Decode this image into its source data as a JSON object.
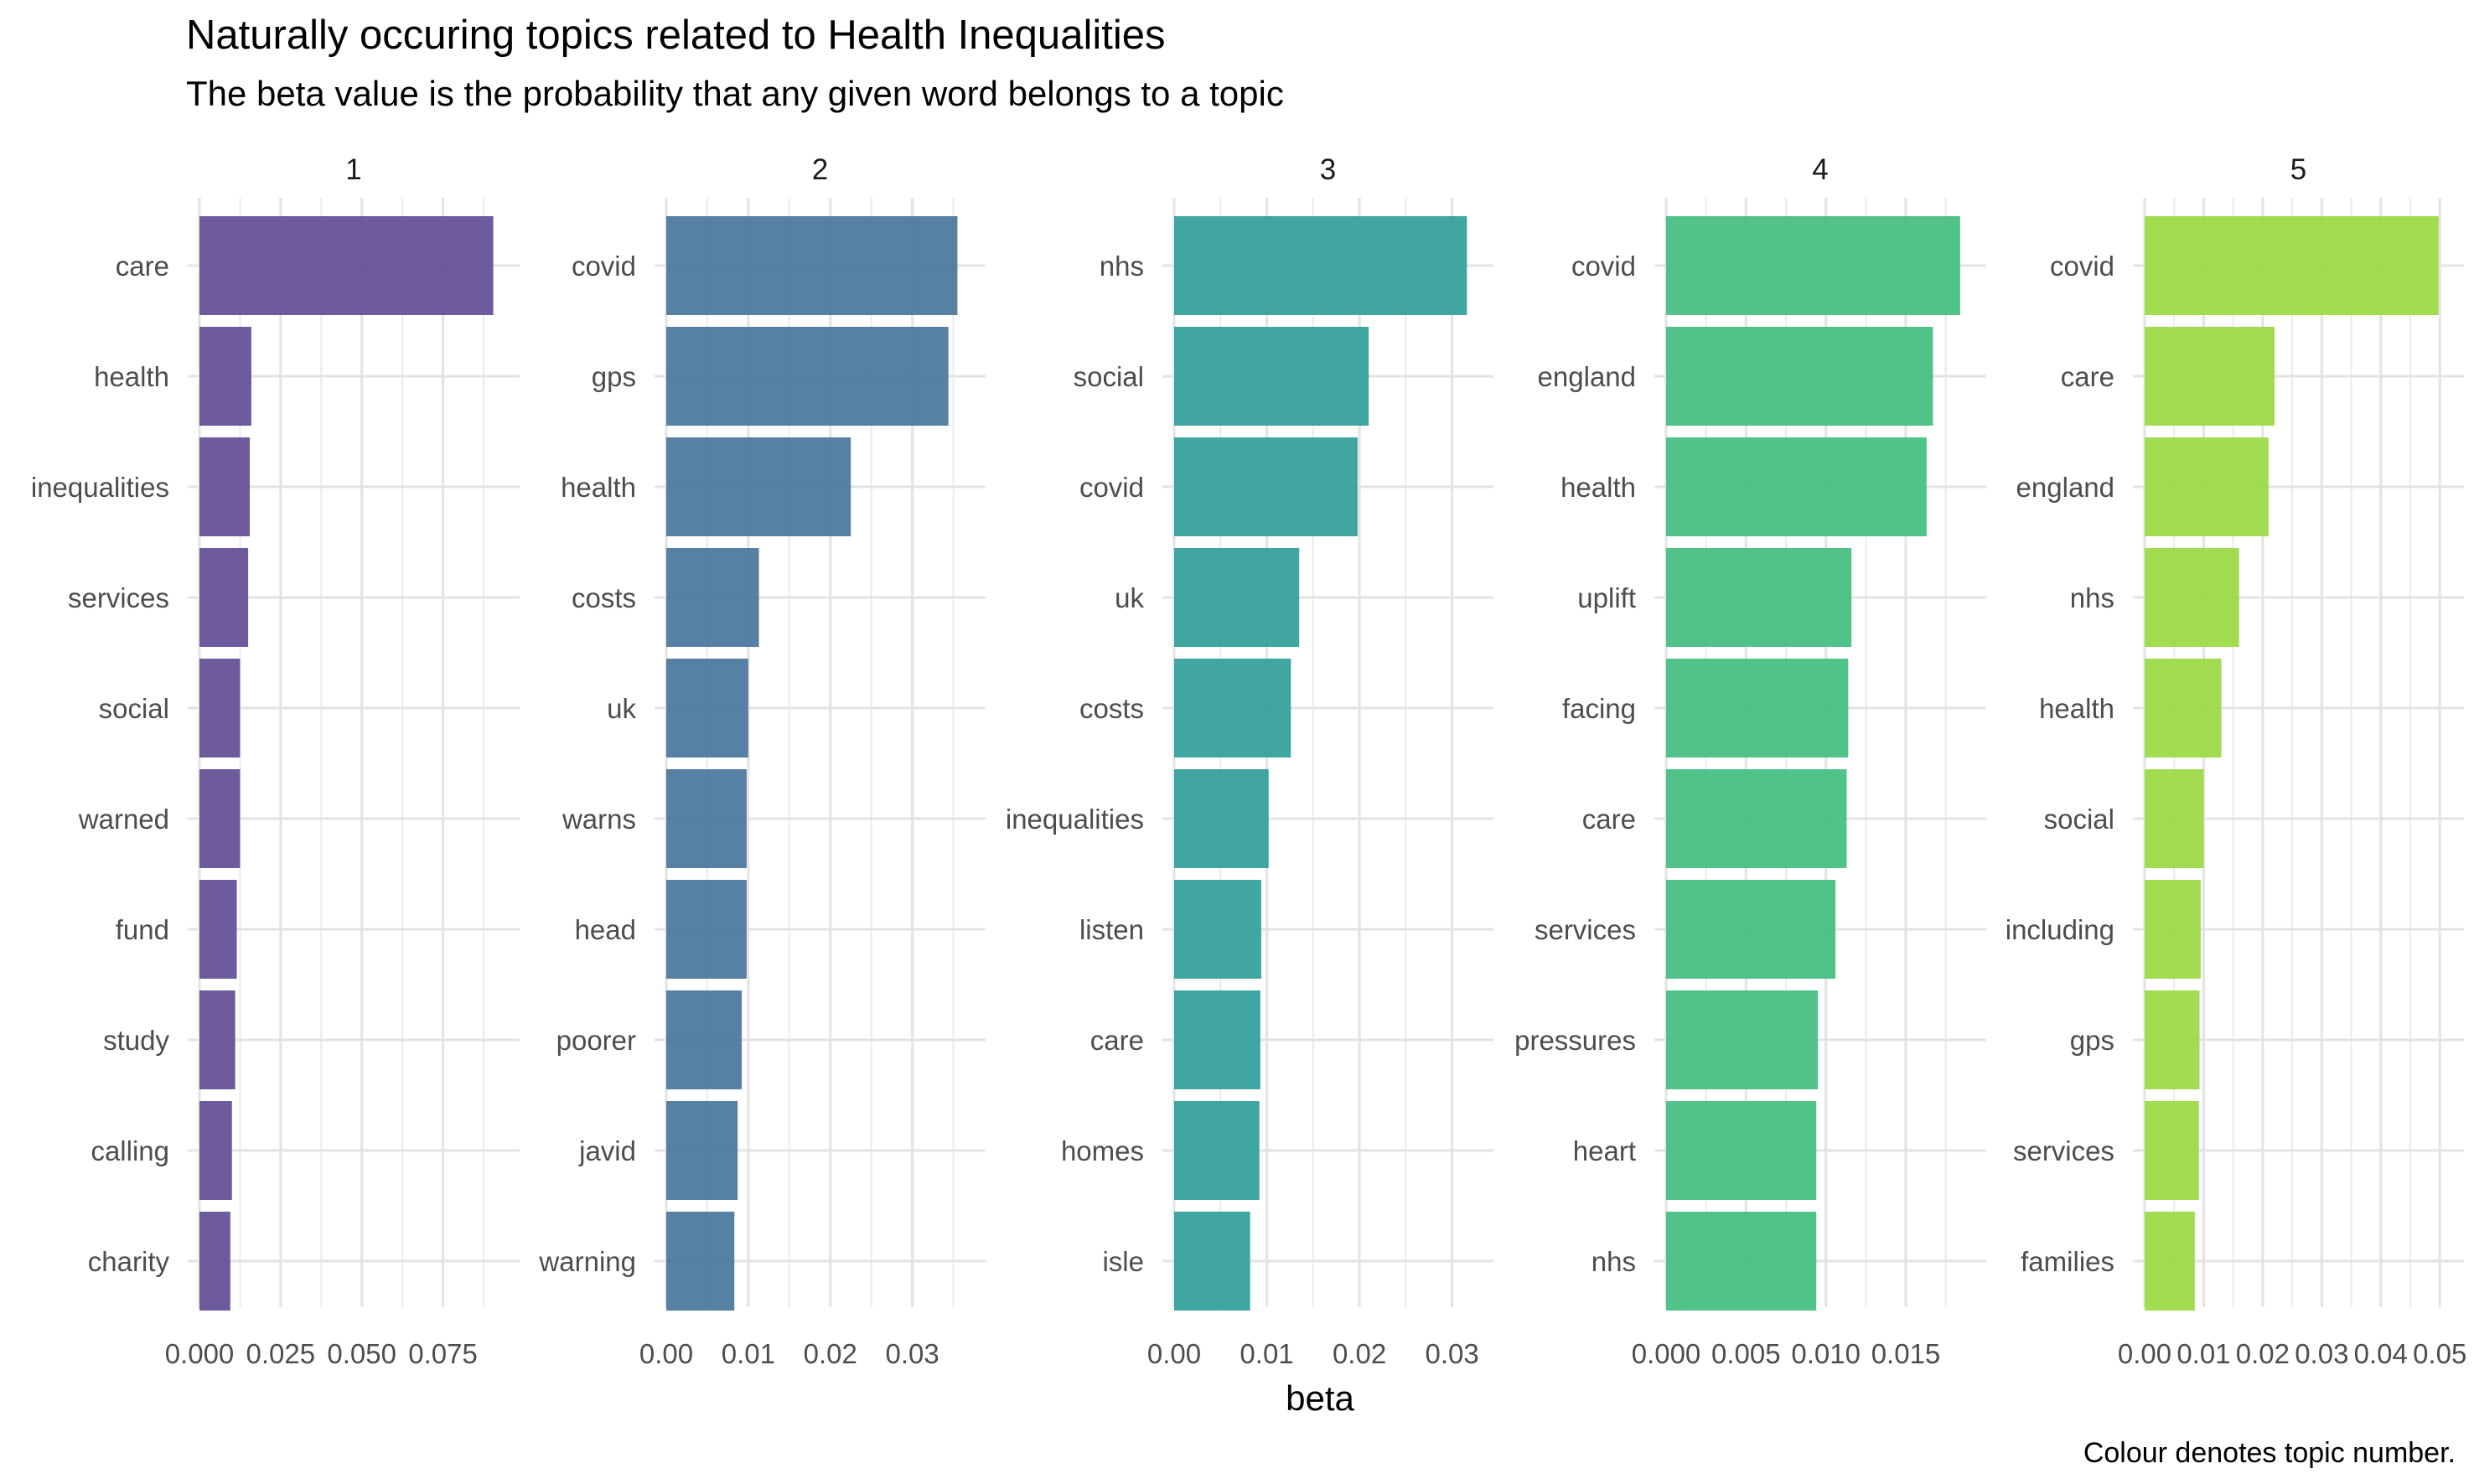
{
  "title": "Naturally occuring topics related to Health Inequalities",
  "subtitle": "The beta value is the probability that any given word belongs to a topic",
  "caption": "Colour denotes topic number.",
  "chart_data": {
    "type": "bar",
    "orientation": "horizontal",
    "layout": "facets",
    "xlabel": "beta",
    "grid": true,
    "legend": "none",
    "facets": [
      {
        "label": "1",
        "color": "#5d4993",
        "terms": [
          "care",
          "health",
          "inequalities",
          "services",
          "social",
          "warned",
          "fund",
          "study",
          "calling",
          "charity"
        ],
        "values": [
          0.0905,
          0.016,
          0.0155,
          0.015,
          0.0125,
          0.0125,
          0.0115,
          0.011,
          0.01,
          0.0095
        ],
        "xlim": [
          0,
          0.095
        ],
        "ticks": [
          0,
          0.025,
          0.05,
          0.075
        ],
        "tick_labels": [
          "0.000",
          "0.025",
          "0.050",
          "0.075"
        ]
      },
      {
        "label": "2",
        "color": "#44729a",
        "terms": [
          "covid",
          "gps",
          "health",
          "costs",
          "uk",
          "warns",
          "head",
          "poorer",
          "javid",
          "warning"
        ],
        "values": [
          0.0355,
          0.0344,
          0.0225,
          0.0113,
          0.01,
          0.0098,
          0.0098,
          0.0092,
          0.0087,
          0.0083
        ],
        "xlim": [
          0,
          0.0375
        ],
        "ticks": [
          0,
          0.01,
          0.02,
          0.03
        ],
        "tick_labels": [
          "0.00",
          "0.01",
          "0.02",
          "0.03"
        ]
      },
      {
        "label": "3",
        "color": "#2a9c97",
        "terms": [
          "nhs",
          "social",
          "covid",
          "uk",
          "costs",
          "inequalities",
          "listen",
          "care",
          "homes",
          "isle"
        ],
        "values": [
          0.0316,
          0.021,
          0.0198,
          0.0135,
          0.0126,
          0.0102,
          0.0094,
          0.0093,
          0.0092,
          0.0082
        ],
        "xlim": [
          0,
          0.0332
        ],
        "ticks": [
          0,
          0.01,
          0.02,
          0.03
        ],
        "tick_labels": [
          "0.00",
          "0.01",
          "0.02",
          "0.03"
        ]
      },
      {
        "label": "4",
        "color": "#3ebc7c",
        "terms": [
          "covid",
          "england",
          "health",
          "uplift",
          "facing",
          "care",
          "services",
          "pressures",
          "heart",
          "nhs"
        ],
        "values": [
          0.0184,
          0.0167,
          0.0163,
          0.0116,
          0.0114,
          0.0113,
          0.0106,
          0.0095,
          0.0094,
          0.0094
        ],
        "xlim": [
          0,
          0.0193
        ],
        "ticks": [
          0,
          0.005,
          0.01,
          0.015
        ],
        "tick_labels": [
          "0.000",
          "0.005",
          "0.010",
          "0.015"
        ]
      },
      {
        "label": "5",
        "color": "#98d83e",
        "terms": [
          "covid",
          "care",
          "england",
          "nhs",
          "health",
          "social",
          "including",
          "gps",
          "services",
          "families"
        ],
        "values": [
          0.0498,
          0.022,
          0.021,
          0.016,
          0.013,
          0.01,
          0.0095,
          0.0093,
          0.0092,
          0.0085
        ],
        "xlim": [
          0,
          0.0521
        ],
        "ticks": [
          0,
          0.01,
          0.02,
          0.03,
          0.04,
          0.05
        ],
        "tick_labels": [
          "0.00",
          "0.01",
          "0.02",
          "0.03",
          "0.04",
          "0.05"
        ]
      }
    ]
  }
}
